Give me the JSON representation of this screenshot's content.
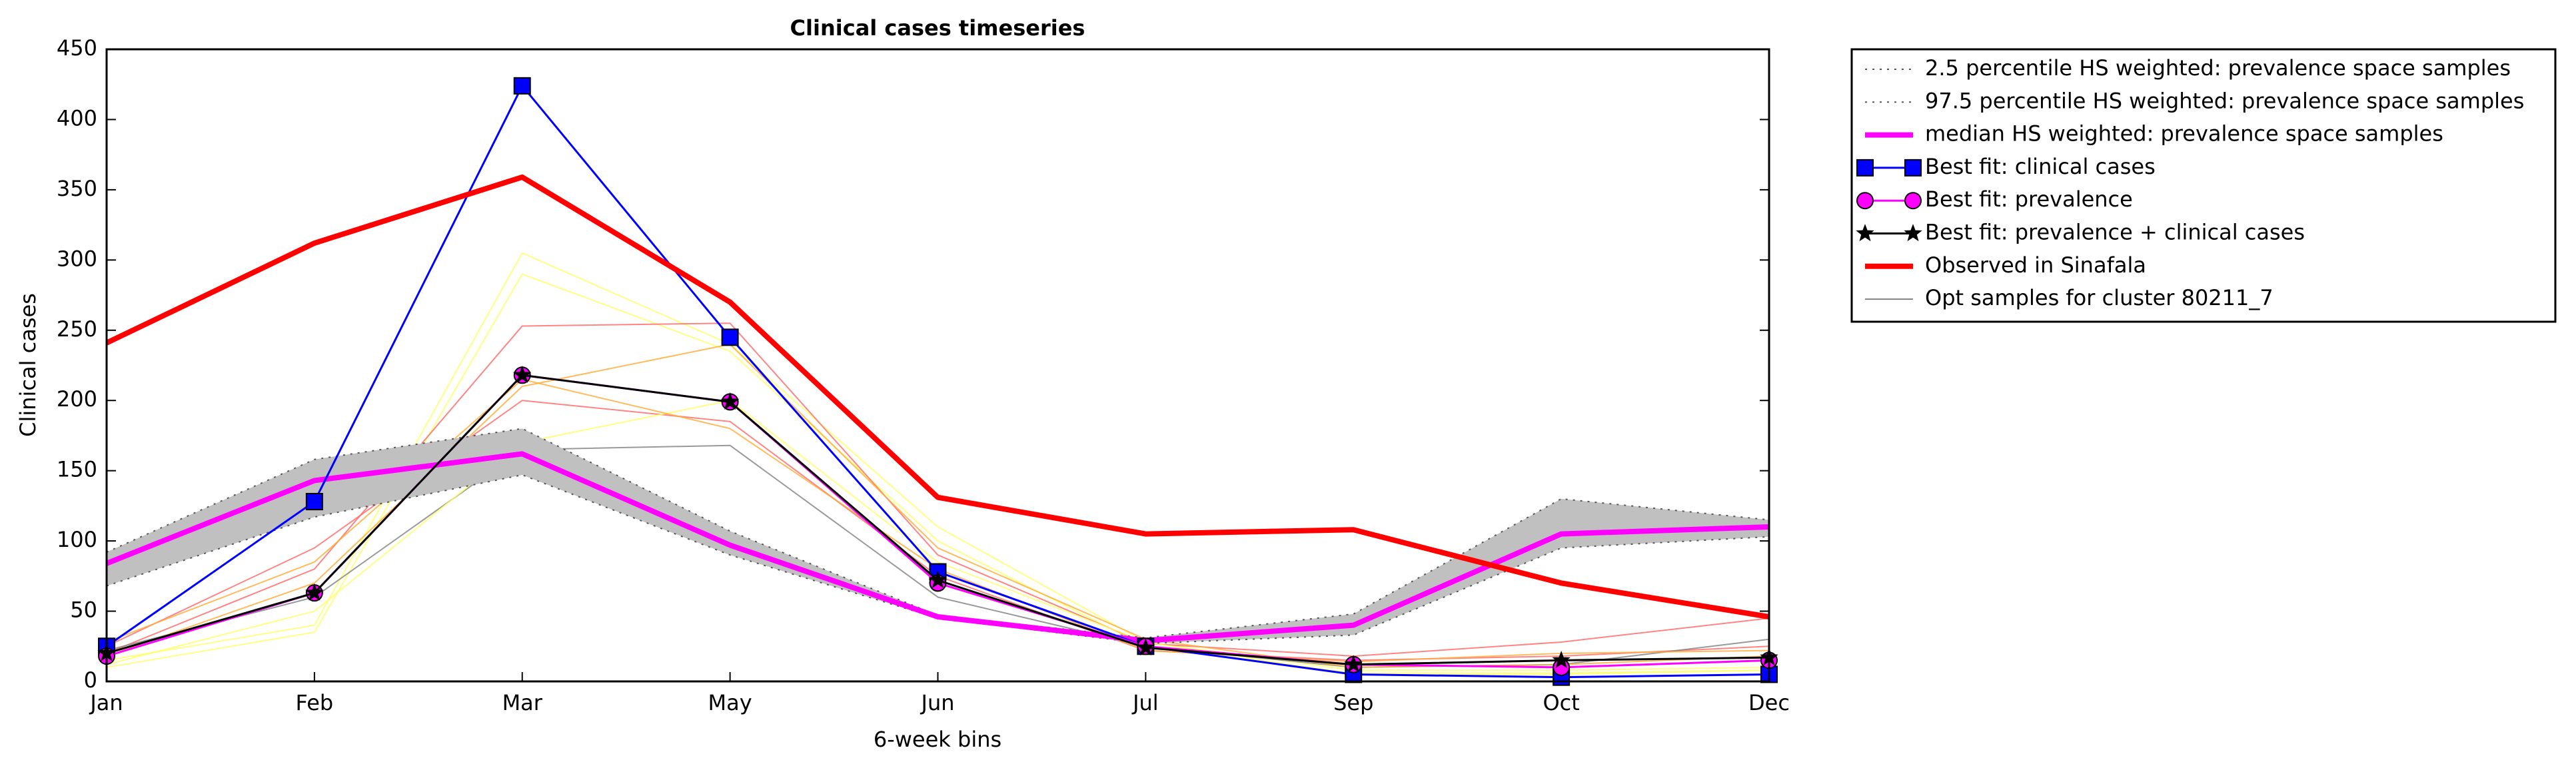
{
  "chart_data": {
    "type": "line",
    "title": "Clinical cases timeseries",
    "x_label": "6-week bins",
    "y_label": "Clinical cases",
    "categories": [
      "Jan",
      "Feb",
      "Mar",
      "May",
      "Jun",
      "Jul",
      "Sep",
      "Oct",
      "Dec"
    ],
    "ylim": [
      0,
      450
    ],
    "yticks": [
      0,
      50,
      100,
      150,
      200,
      250,
      300,
      350,
      400,
      450
    ],
    "band_color": "#c0c0c0",
    "series": [
      {
        "name": "2.5 percentile HS weighted: prevalence space samples",
        "color": "#555555",
        "style": "dotted",
        "values": [
          68,
          117,
          147,
          90,
          45,
          27,
          33,
          95,
          103
        ]
      },
      {
        "name": "97.5 percentile HS weighted: prevalence space samples",
        "color": "#555555",
        "style": "dotted",
        "values": [
          92,
          158,
          180,
          107,
          47,
          31,
          48,
          130,
          115
        ]
      },
      {
        "name": "median HS weighted: prevalence space samples",
        "color": "#ff00ff",
        "style": "thick",
        "values": [
          84,
          143,
          162,
          97,
          46,
          29,
          40,
          105,
          110
        ]
      },
      {
        "name": "Best fit: clinical cases",
        "color": "#0000ff",
        "marker": "square",
        "marker_color": "#0000ff",
        "values": [
          25,
          128,
          424,
          245,
          78,
          25,
          5,
          3,
          5
        ]
      },
      {
        "name": "Best fit: prevalence",
        "color": "#ff00ff",
        "marker": "circle",
        "marker_color": "#ff00ff",
        "values": [
          18,
          63,
          218,
          199,
          70,
          25,
          12,
          10,
          15
        ]
      },
      {
        "name": "Best fit: prevalence + clinical cases",
        "color": "#000000",
        "marker": "star",
        "marker_color": "#000000",
        "values": [
          20,
          63,
          218,
          199,
          72,
          24,
          12,
          15,
          17
        ]
      },
      {
        "name": "Observed in Sinafala",
        "color": "#ff0000",
        "style": "thick",
        "values": [
          241,
          312,
          359,
          270,
          131,
          105,
          108,
          70,
          46
        ]
      }
    ],
    "opt_samples": {
      "name": "Opt samples for cluster 80211_7",
      "color": "#808080",
      "lines": [
        {
          "color": "#ffff66",
          "values": [
            15,
            40,
            305,
            240,
            110,
            28,
            8,
            8,
            10
          ]
        },
        {
          "color": "#ffff66",
          "values": [
            10,
            35,
            290,
            235,
            100,
            25,
            6,
            6,
            8
          ]
        },
        {
          "color": "#ff6666",
          "values": [
            20,
            80,
            253,
            255,
            90,
            27,
            18,
            28,
            45
          ]
        },
        {
          "color": "#ff6666",
          "values": [
            25,
            95,
            200,
            185,
            75,
            22,
            15,
            18,
            25
          ]
        },
        {
          "color": "#808080",
          "values": [
            22,
            60,
            165,
            168,
            60,
            25,
            10,
            12,
            30
          ]
        },
        {
          "color": "#ffaa33",
          "values": [
            18,
            70,
            210,
            240,
            95,
            30,
            10,
            12,
            18
          ]
        },
        {
          "color": "#ffff66",
          "values": [
            12,
            50,
            170,
            200,
            85,
            28,
            5,
            5,
            8
          ]
        },
        {
          "color": "#ffaa33",
          "values": [
            28,
            85,
            215,
            180,
            80,
            22,
            14,
            20,
            22
          ]
        }
      ]
    }
  }
}
